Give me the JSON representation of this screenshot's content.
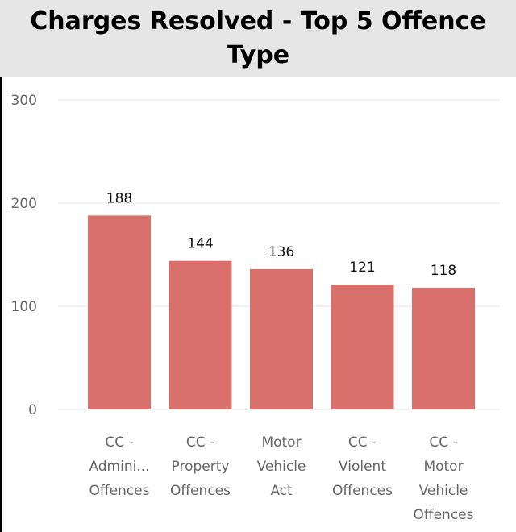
{
  "chart_data": {
    "type": "bar",
    "title": "Charges Resolved - Top 5 Offence Type",
    "categories": [
      [
        "CC -",
        "Admini...",
        "Offences"
      ],
      [
        "CC -",
        "Property",
        "Offences"
      ],
      [
        "Motor",
        "Vehicle",
        "Act"
      ],
      [
        "CC -",
        "Violent",
        "Offences"
      ],
      [
        "CC -",
        "Motor",
        "Vehicle",
        "Offences"
      ]
    ],
    "values": [
      188,
      144,
      136,
      121,
      118
    ],
    "ylim": [
      0,
      300
    ],
    "yticks": [
      0,
      100,
      200,
      300
    ],
    "grid": true,
    "legend": "none",
    "colors": {
      "bar": "#d9706b",
      "grid": "#e6e6e6",
      "title_background": "#e6e6e6"
    }
  }
}
